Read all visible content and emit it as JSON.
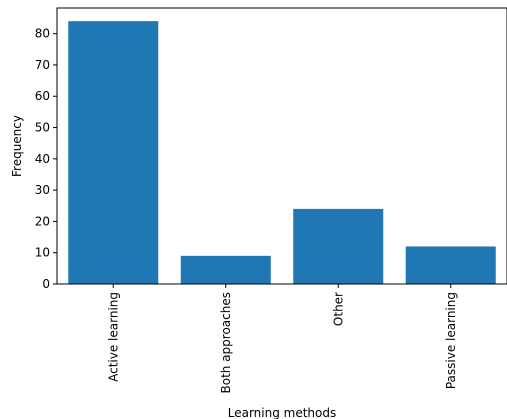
{
  "chart_data": {
    "type": "bar",
    "categories": [
      "Active learning",
      "Both approaches",
      "Other",
      "Passive learning"
    ],
    "values": [
      84,
      9,
      24,
      12
    ],
    "xlabel": "Learning methods",
    "ylabel": "Frequency",
    "ylim": [
      0,
      88.2
    ],
    "yticks": [
      0,
      10,
      20,
      30,
      40,
      50,
      60,
      70,
      80
    ],
    "grid": false,
    "bar_color": "#1f77b4",
    "xtick_rotation": 90
  }
}
